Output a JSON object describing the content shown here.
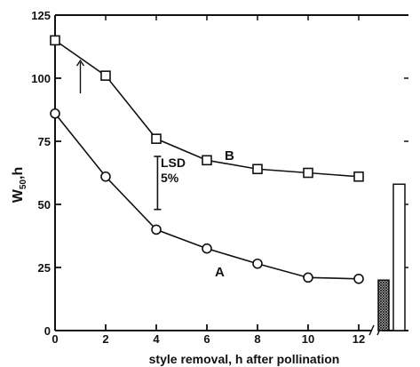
{
  "chart_data": {
    "type": "line",
    "xlabel": "style removal, h after pollination",
    "ylabel_main": "W",
    "ylabel_sub": "50",
    "ylabel_suffix": ",h",
    "xlim": [
      0,
      12
    ],
    "ylim": [
      0,
      125
    ],
    "x_ticks": [
      0,
      2,
      4,
      6,
      8,
      10,
      12
    ],
    "y_ticks": [
      0,
      25,
      50,
      75,
      100,
      125
    ],
    "grid": false,
    "legend": "none",
    "series": [
      {
        "name": "B",
        "marker": "square",
        "x": [
          0,
          2,
          4,
          6,
          8,
          10,
          12
        ],
        "y": [
          115,
          101,
          76,
          67.5,
          64,
          62.5,
          61
        ]
      },
      {
        "name": "A",
        "marker": "circle",
        "x": [
          0,
          2,
          4,
          6,
          8,
          10,
          12
        ],
        "y": [
          86,
          61,
          40,
          32.5,
          26.5,
          21,
          20.5
        ]
      }
    ],
    "lsd": {
      "label_line1": "LSD",
      "label_line2": "5%",
      "x": 4.05,
      "y_low": 48,
      "y_high": 69
    },
    "arrow": {
      "x": 1,
      "y_low": 94,
      "y_high": 107
    },
    "bars": [
      {
        "pattern": "hatched",
        "value": 20
      },
      {
        "pattern": "open",
        "value": 58
      }
    ]
  }
}
